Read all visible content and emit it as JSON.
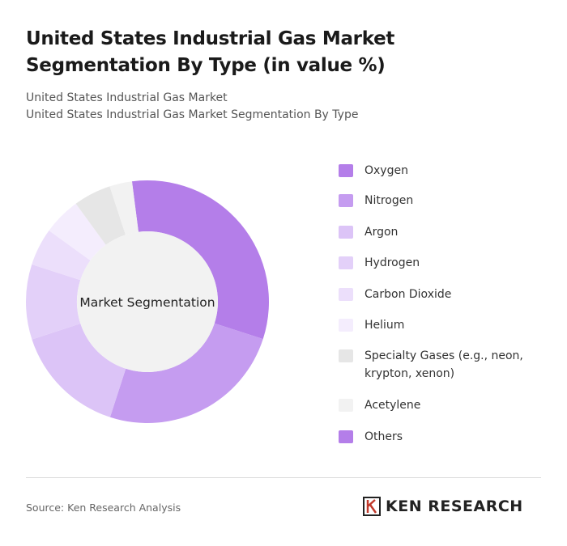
{
  "title": "United States Industrial Gas Market Segmentation By Type (in value %)",
  "subtitle_lines": [
    "United States Industrial Gas Market",
    "United States Industrial Gas Market Segmentation By Type"
  ],
  "chart_data": {
    "type": "donut",
    "center_label": "Market Segmentation",
    "categories": [
      "Oxygen",
      "Nitrogen",
      "Argon",
      "Hydrogen",
      "Carbon Dioxide",
      "Helium",
      "Specialty Gases (e.g., neon, krypton, xenon)",
      "Acetylene",
      "Others"
    ],
    "values": [
      32,
      25,
      15,
      10,
      5,
      5,
      5,
      3,
      0
    ],
    "colors": [
      "#b47ee9",
      "#c59cf0",
      "#dcc4f7",
      "#e3d0f9",
      "#ecdffb",
      "#f4edfd",
      "#e6e6e6",
      "#f2f2f2",
      "#b47ee9"
    ]
  },
  "source": "Source: Ken Research Analysis",
  "logo": "KEN RESEARCH"
}
